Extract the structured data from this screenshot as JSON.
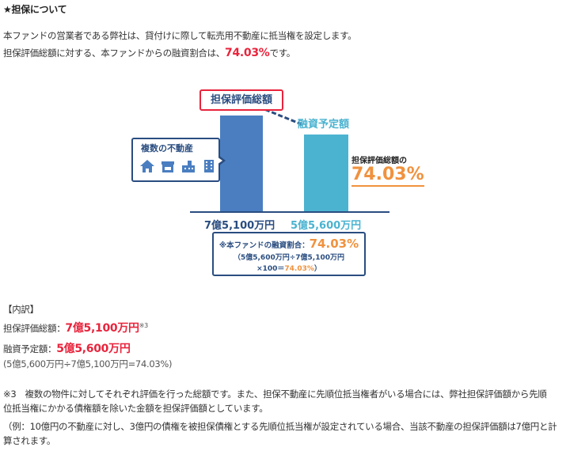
{
  "heading": "★担保について",
  "intro": {
    "line1": "本ファンドの営業者である弊社は、貸付けに際して転売用不動産に抵当権を設定します。",
    "line2_prefix": "担保評価総額に対する、本ファンドからの融資割合は、",
    "line2_ratio": "74.03%",
    "line2_suffix": "です。"
  },
  "diagram": {
    "collateral_label": "担保評価総額",
    "loan_label": "融資予定額",
    "property_label": "複数の不動産",
    "property_icons": [
      "house-icon",
      "shop-icon",
      "factory-icon",
      "building-icon"
    ],
    "side_label": "担保評価総額の",
    "side_pct": "74.03%",
    "collateral_amount": "7億5,100万円",
    "loan_amount": "5億5,600万円",
    "calc_line1_prefix": "※本ファンドの融資割合：",
    "calc_line1_pct": "74.03%",
    "calc_line2": "（5億5,600万円÷7億5,100万円",
    "calc_line3_prefix": "×100＝",
    "calc_line3_pct": "74.03%",
    "calc_line3_suffix": "）",
    "colors": {
      "collateral_bar": "#4a7ec1",
      "loan_bar": "#4bb3d0",
      "accent": "#f0923e",
      "red": "#e8243c",
      "navy": "#2a4d80"
    }
  },
  "breakdown": {
    "title": "【内訳】",
    "collateral_label": "担保評価総額：",
    "collateral_value": "7億5,100万円",
    "collateral_note": "※3",
    "loan_label": "融資予定額：",
    "loan_value": "5億5,600万円",
    "formula": "(5億5,600万円÷7億5,100万円=74.03%)"
  },
  "note": {
    "line1": "※3　複数の物件に対してそれぞれ評価を行った総額です。また、担保不動産に先順位抵当権者がいる場合には、弊社担保評価額から先順",
    "line2": "位抵当権にかかる債権額を除いた金額を担保評価額としています。",
    "line3": "（例：10億円の不動産に対し、3億円の債権を被担保債権とする先順位抵当権が設定されている場合、当該不動産の担保評価額は7億円と計",
    "line4": "算されます。"
  }
}
